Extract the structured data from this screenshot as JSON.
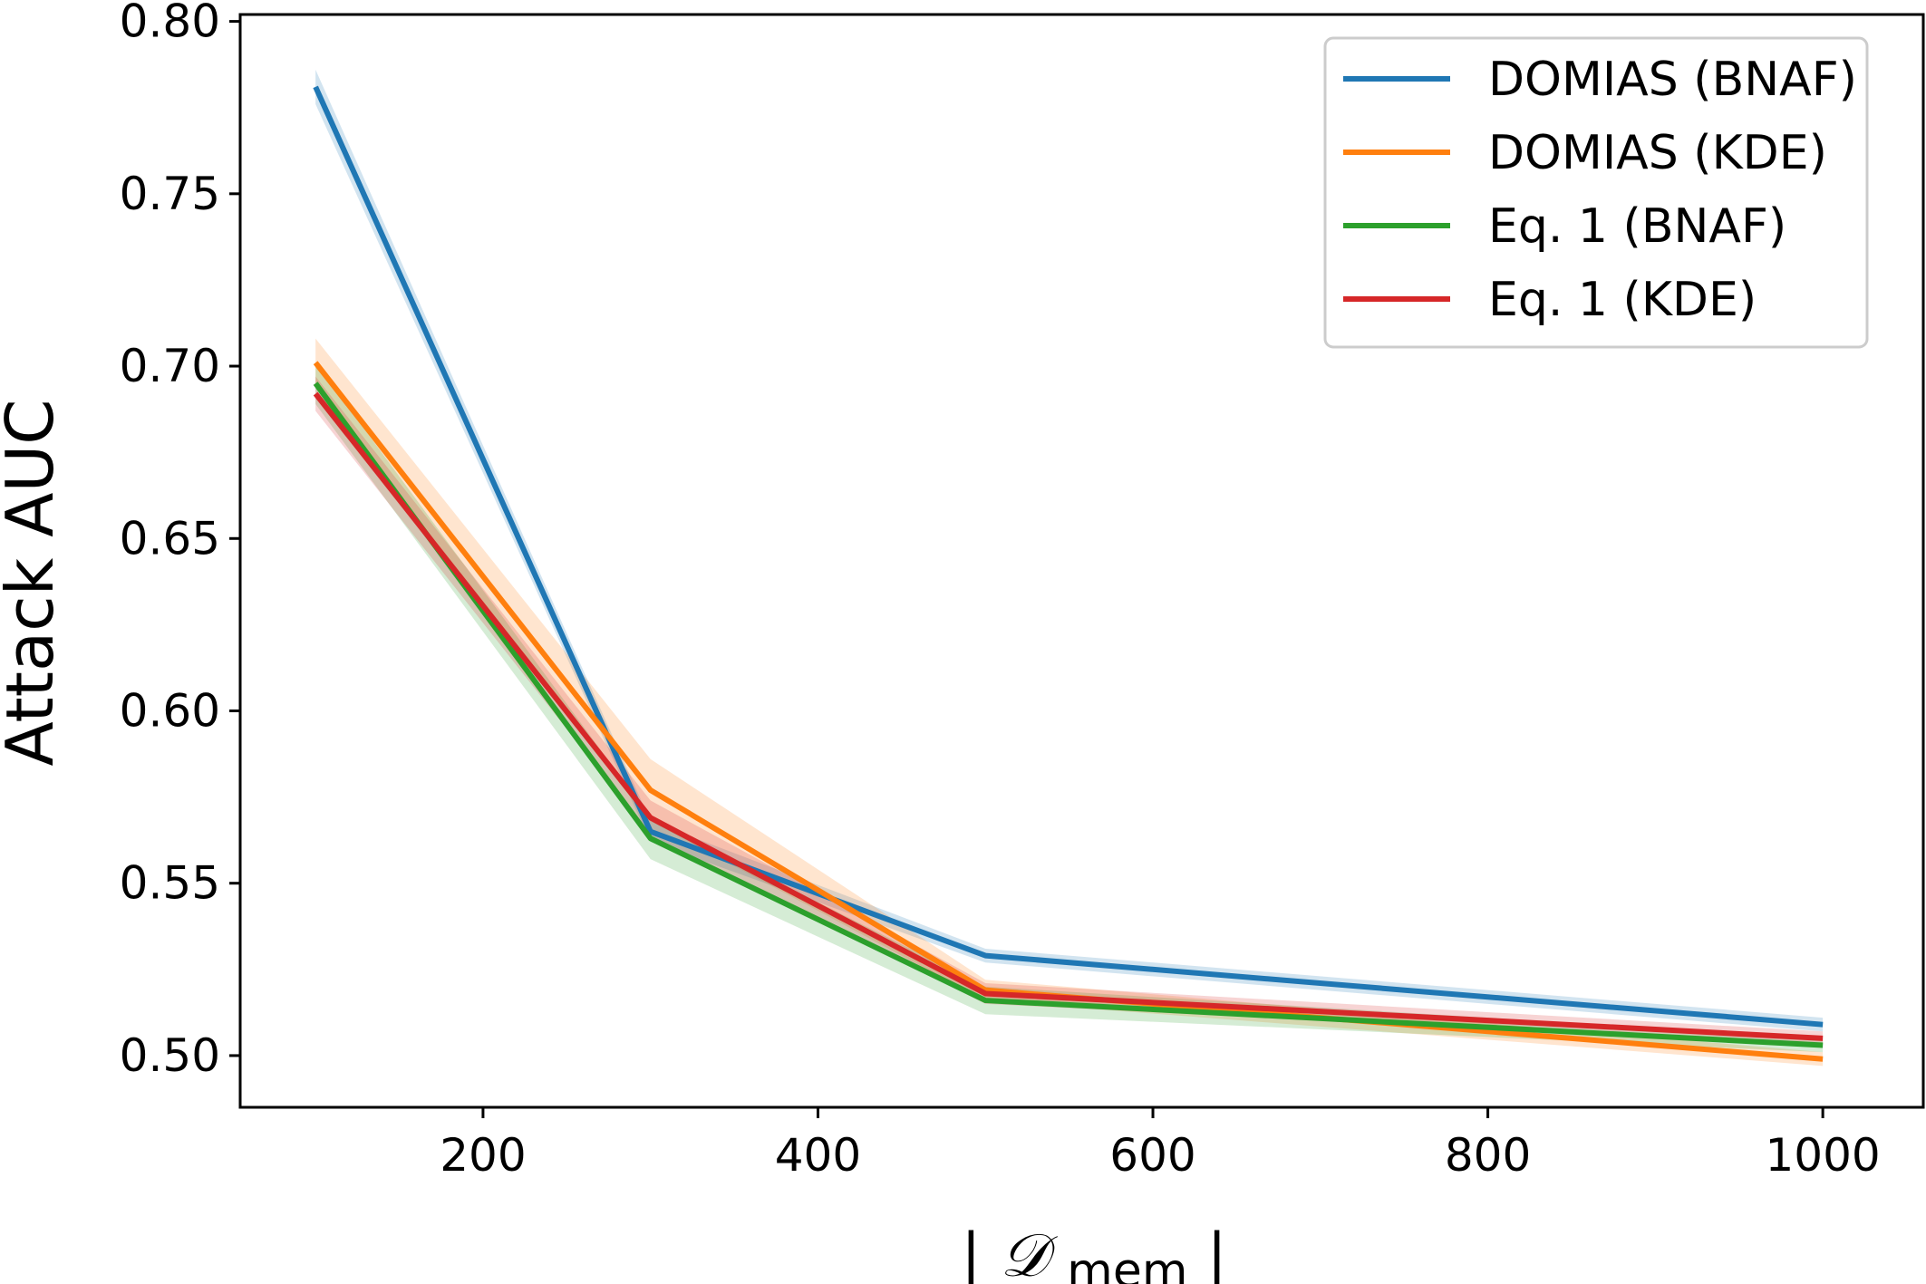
{
  "chart_data": {
    "type": "line",
    "ylabel": "Attack AUC",
    "xlabel": {
      "base": "|",
      "symbol": "𝒟",
      "subscript": "mem",
      "close": "|"
    },
    "xlim": [
      55,
      1060
    ],
    "ylim": [
      0.485,
      0.802
    ],
    "xticks": [
      200,
      400,
      600,
      800,
      1000
    ],
    "yticks": [
      0.5,
      0.55,
      0.6,
      0.65,
      0.7,
      0.75,
      0.8
    ],
    "ytick_labels": [
      "0.50",
      "0.55",
      "0.60",
      "0.65",
      "0.70",
      "0.75",
      "0.80"
    ],
    "xtick_labels": [
      "200",
      "400",
      "600",
      "800",
      "1000"
    ],
    "legend_position": "top-right",
    "grid": false,
    "x": [
      100,
      300,
      500,
      1000
    ],
    "series": [
      {
        "name": "DOMIAS (BNAF)",
        "color": "#1f77b4",
        "values": [
          0.781,
          0.565,
          0.529,
          0.509
        ],
        "band": [
          0.005,
          0.003,
          0.002,
          0.002
        ]
      },
      {
        "name": "DOMIAS (KDE)",
        "color": "#ff7f0e",
        "values": [
          0.701,
          0.577,
          0.519,
          0.499
        ],
        "band": [
          0.007,
          0.009,
          0.003,
          0.002
        ]
      },
      {
        "name": "Eq. 1 (BNAF)",
        "color": "#2ca02c",
        "values": [
          0.695,
          0.563,
          0.516,
          0.503
        ],
        "band": [
          0.006,
          0.006,
          0.004,
          0.002
        ]
      },
      {
        "name": "Eq. 1 (KDE)",
        "color": "#d62728",
        "values": [
          0.692,
          0.569,
          0.518,
          0.505
        ],
        "band": [
          0.005,
          0.005,
          0.003,
          0.002
        ]
      }
    ]
  }
}
